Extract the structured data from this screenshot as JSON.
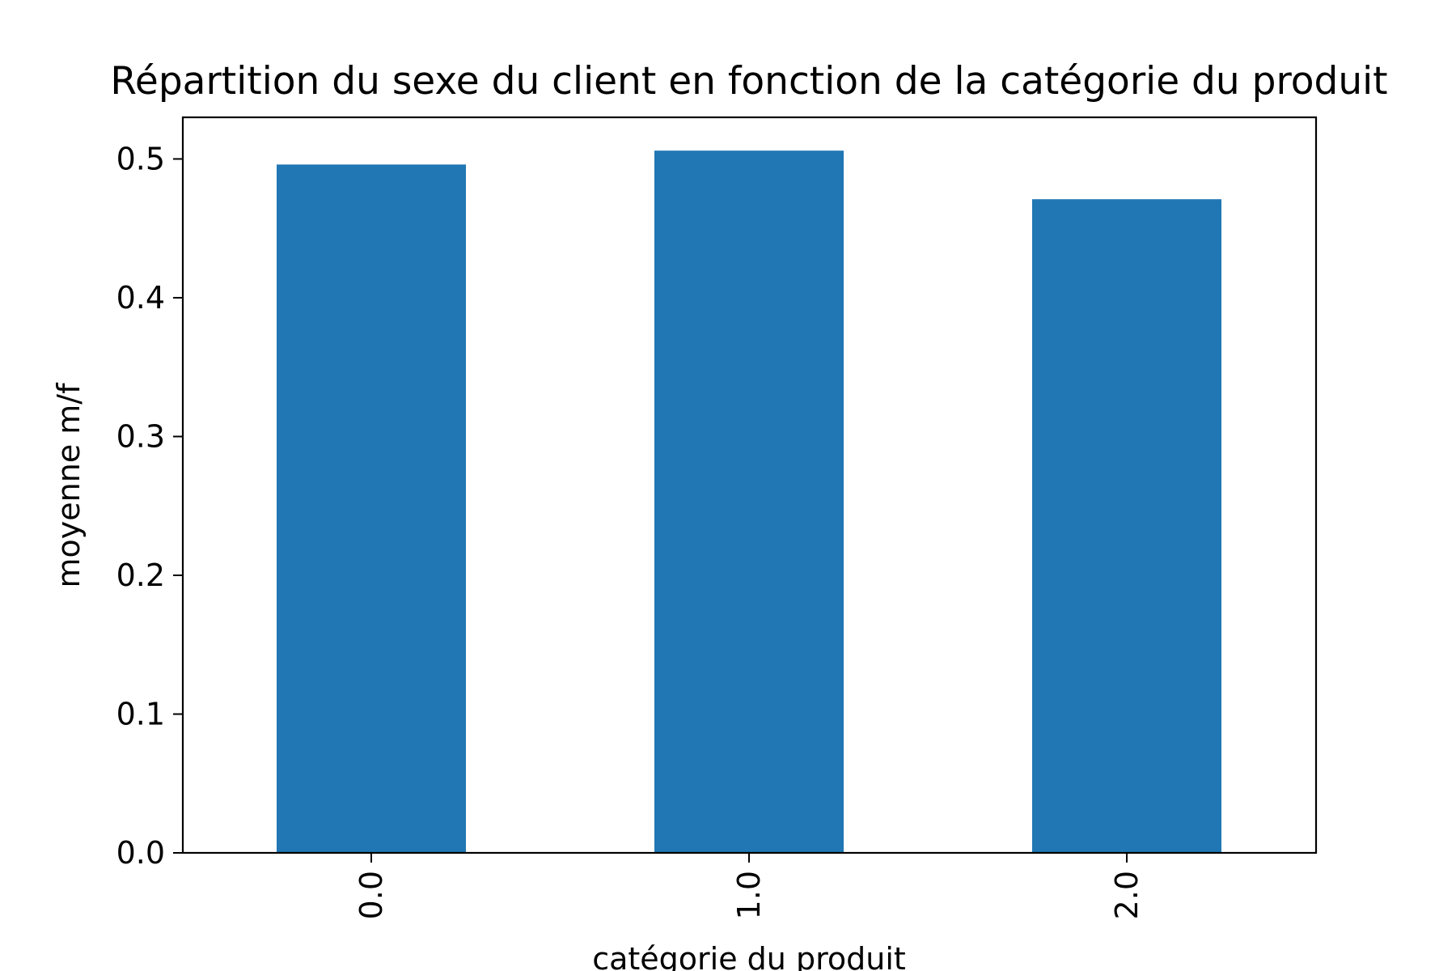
{
  "chart_data": {
    "type": "bar",
    "title": "Répartition du sexe du client en fonction de la catégorie du produit",
    "xlabel": "catégorie du produit",
    "ylabel": "moyenne m/f",
    "categories": [
      "0.0",
      "1.0",
      "2.0"
    ],
    "values": [
      0.496,
      0.506,
      0.471
    ],
    "ylim": [
      0,
      0.53
    ],
    "yticks": [
      0.0,
      0.1,
      0.2,
      0.3,
      0.4,
      0.5
    ],
    "ytick_labels": [
      "0.0",
      "0.1",
      "0.2",
      "0.3",
      "0.4",
      "0.5"
    ],
    "xtick_rotation": "vertical",
    "grid": false,
    "legend": "none",
    "colors": {
      "bar": "#2077b4",
      "axes": "#000000"
    }
  }
}
